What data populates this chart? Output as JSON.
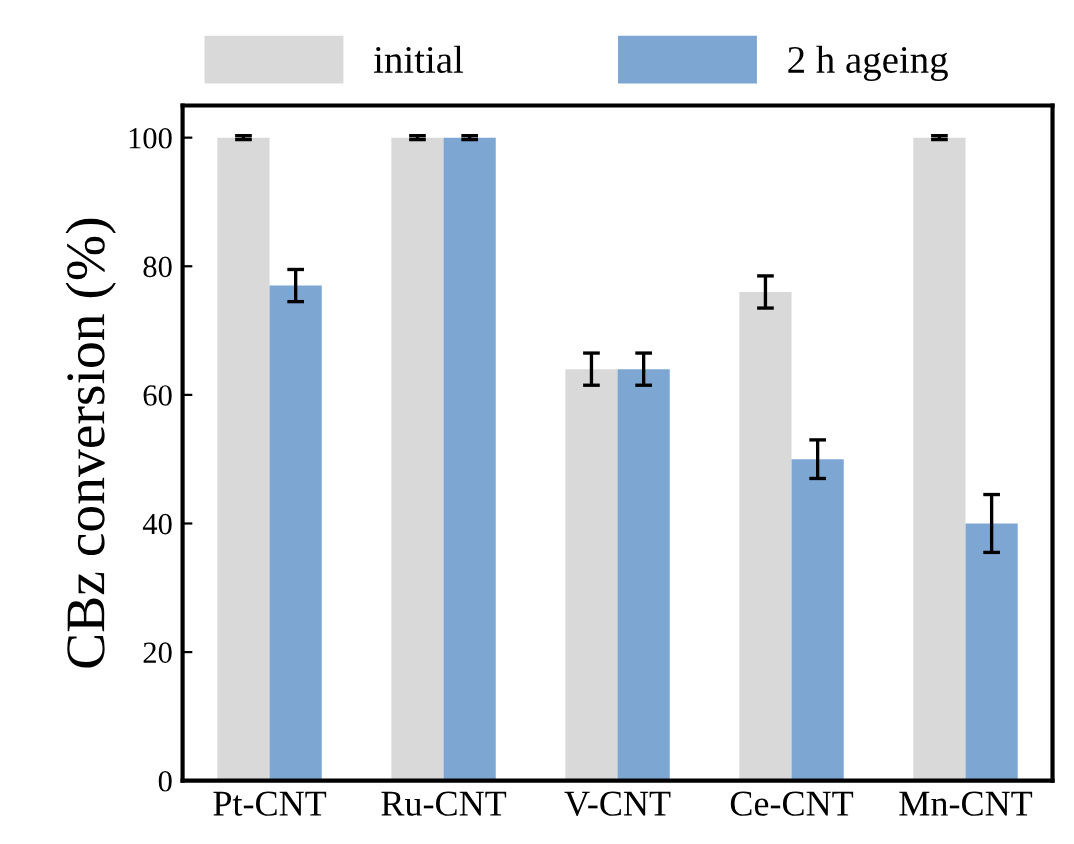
{
  "chart_data": {
    "type": "bar",
    "ylabel": "CBz conversion (%)",
    "categories": [
      "Pt-CNT",
      "Ru-CNT",
      "V-CNT",
      "Ce-CNT",
      "Mn-CNT"
    ],
    "series": [
      {
        "name": "initial",
        "color": "#d9d9d9",
        "values": [
          100,
          100,
          64,
          76,
          100
        ],
        "errors": [
          0.3,
          0.3,
          2.5,
          2.5,
          0.3
        ]
      },
      {
        "name": "2 h ageing",
        "color": "#7ea6d3",
        "values": [
          77,
          100,
          64,
          50,
          40
        ],
        "errors": [
          2.5,
          0.3,
          2.5,
          3,
          4.5
        ]
      }
    ],
    "ylim": [
      0,
      105
    ],
    "yticks": [
      0,
      20,
      40,
      60,
      80,
      100
    ],
    "legend": "top",
    "grid": false
  }
}
